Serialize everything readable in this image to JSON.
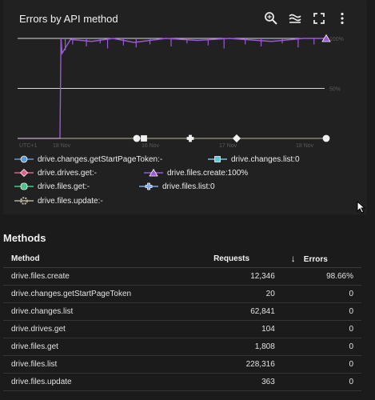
{
  "card": {
    "title": "Errors by API method",
    "tools": [
      "zoom-icon",
      "reset-zoom-icon",
      "fullscreen-icon",
      "more-vert-icon"
    ]
  },
  "chart_data": {
    "type": "line",
    "title": "Errors by API method",
    "y_ticks": [
      "100%",
      "50%"
    ],
    "ylim": [
      0,
      100
    ],
    "x_ticks": [
      "UTC+1",
      "18 Nov",
      "16 Nov",
      "17 Nov",
      "18 Nov"
    ],
    "x_range_days": [
      15.6,
      18.5
    ],
    "grid": true,
    "legend_position": "bottom",
    "series": [
      {
        "name": "drive.changes.getStartPageToken",
        "value": "-",
        "color": "#5b9bd5",
        "marker": "circle",
        "x": [
          15.6,
          18.5
        ],
        "y": [
          0,
          0
        ]
      },
      {
        "name": "drive.changes.list",
        "value": "0",
        "color": "#5fc9e0",
        "marker": "square",
        "x": [
          15.6,
          18.5
        ],
        "y": [
          0,
          0
        ]
      },
      {
        "name": "drive.drives.get",
        "value": "-",
        "color": "#e05a8a",
        "marker": "diamond",
        "x": [
          15.6,
          18.5
        ],
        "y": [
          0,
          0
        ]
      },
      {
        "name": "drive.files.create",
        "value": "100%",
        "color": "#9b59d6",
        "marker": "triangle",
        "x": [
          15.6,
          16.0,
          16.01,
          16.02,
          16.1,
          16.3,
          16.5,
          16.7,
          17.0,
          17.3,
          17.6,
          18.0,
          18.3,
          18.5
        ],
        "y": [
          0,
          0,
          100,
          85,
          99,
          97,
          100,
          96,
          100,
          98,
          100,
          97,
          100,
          100
        ]
      },
      {
        "name": "drive.files.get",
        "value": "-",
        "color": "#4cc38a",
        "marker": "pill",
        "x": [
          15.6,
          18.5
        ],
        "y": [
          0,
          0
        ]
      },
      {
        "name": "drive.files.list",
        "value": "0",
        "color": "#7fa8e0",
        "marker": "cross",
        "x": [
          15.6,
          18.5
        ],
        "y": [
          0,
          0
        ]
      },
      {
        "name": "drive.files.update",
        "value": "-",
        "color": "#b5b09a",
        "marker": "gear",
        "x": [
          15.6,
          18.5
        ],
        "y": [
          0,
          0
        ]
      }
    ]
  },
  "methods": {
    "title": "Methods",
    "columns": {
      "method": "Method",
      "requests": "Requests",
      "errors": "Errors"
    },
    "rows": [
      {
        "method": "drive.files.create",
        "requests": "12,346",
        "errors": "98.66%"
      },
      {
        "method": "drive.changes.getStartPageToken",
        "requests": "20",
        "errors": "0"
      },
      {
        "method": "drive.changes.list",
        "requests": "62,841",
        "errors": "0"
      },
      {
        "method": "drive.drives.get",
        "requests": "104",
        "errors": "0"
      },
      {
        "method": "drive.files.get",
        "requests": "1,808",
        "errors": "0"
      },
      {
        "method": "drive.files.list",
        "requests": "228,316",
        "errors": "0"
      },
      {
        "method": "drive.files.update",
        "requests": "363",
        "errors": "0"
      }
    ]
  }
}
